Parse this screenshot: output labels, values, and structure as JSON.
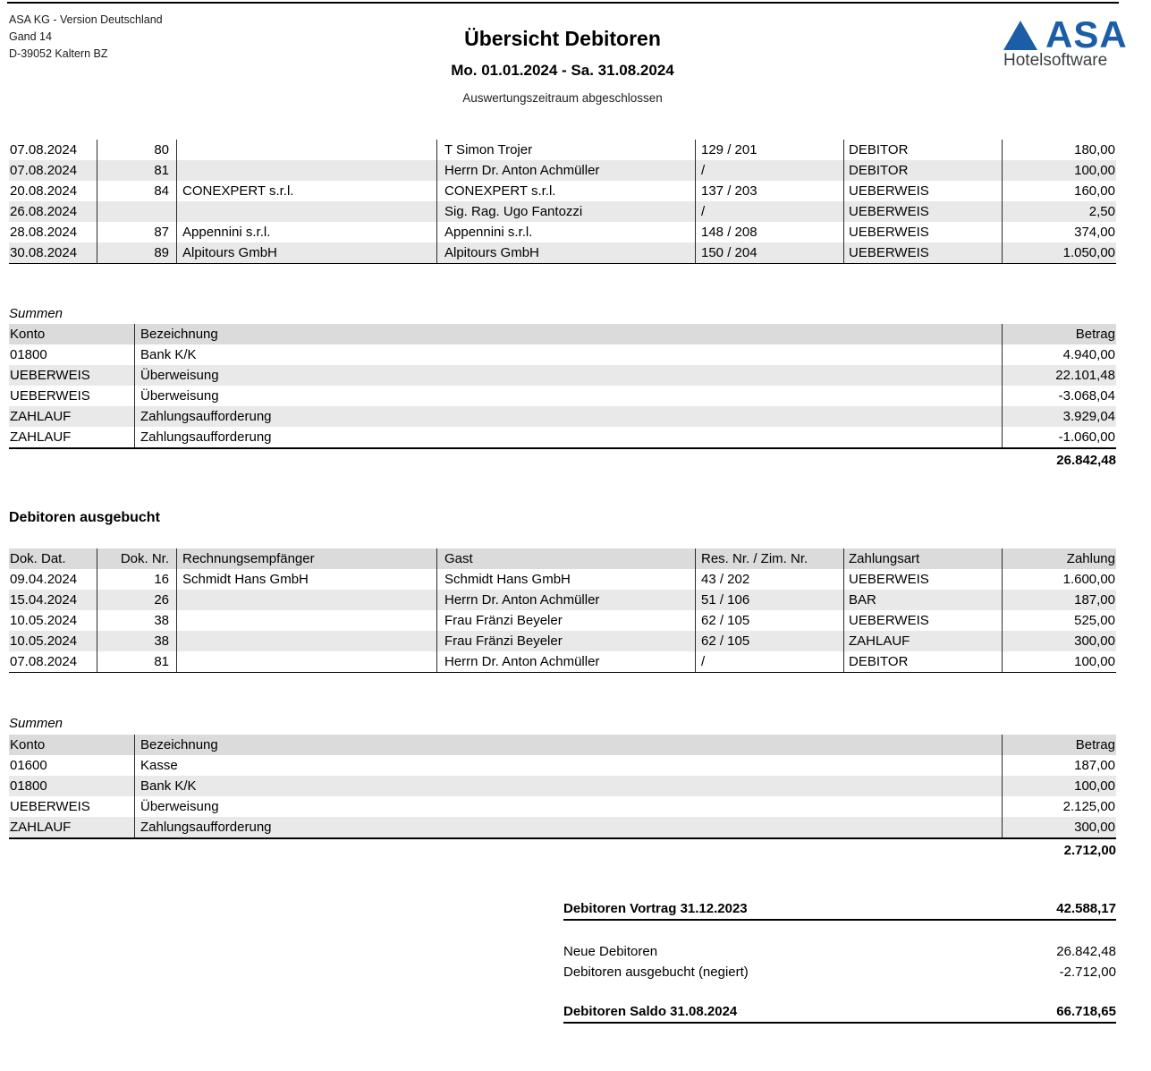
{
  "header": {
    "address_lines": [
      "ASA KG - Version Deutschland",
      "Gand 14",
      "D-39052 Kaltern BZ"
    ],
    "title": "Übersicht Debitoren",
    "date_range": "Mo. 01.01.2024 - Sa. 31.08.2024",
    "status": "Auswertungszeitraum abgeschlossen",
    "logo": {
      "icon": "triangle-icon",
      "brand": "ASA",
      "subtitle": "Hotelsoftware",
      "brand_color": "#1b5ea6",
      "subtitle_color": "#3b3f42"
    }
  },
  "open_debtors_table": {
    "rows": [
      [
        "07.08.2024",
        "80",
        "",
        "T Simon Trojer",
        "129 / 201",
        "DEBITOR",
        "180,00"
      ],
      [
        "07.08.2024",
        "81",
        "",
        "Herrn Dr. Anton Achmüller",
        "/",
        "DEBITOR",
        "100,00"
      ],
      [
        "20.08.2024",
        "84",
        "CONEXPERT s.r.l.",
        "CONEXPERT s.r.l.",
        "137 / 203",
        "UEBERWEIS",
        "160,00"
      ],
      [
        "26.08.2024",
        "",
        "",
        "Sig. Rag. Ugo Fantozzi",
        "/",
        "UEBERWEIS",
        "2,50"
      ],
      [
        "28.08.2024",
        "87",
        "Appennini s.r.l.",
        "Appennini s.r.l.",
        "148 / 208",
        "UEBERWEIS",
        "374,00"
      ],
      [
        "30.08.2024",
        "89",
        "Alpitours GmbH",
        "Alpitours GmbH",
        "150 / 204",
        "UEBERWEIS",
        "1.050,00"
      ]
    ]
  },
  "summen1": {
    "title": "Summen",
    "headers": [
      "Konto",
      "Bezeichnung",
      "Betrag"
    ],
    "rows": [
      [
        "01800",
        "Bank K/K",
        "4.940,00"
      ],
      [
        "UEBERWEIS",
        "Überweisung",
        "22.101,48"
      ],
      [
        "UEBERWEIS",
        "Überweisung",
        "-3.068,04"
      ],
      [
        "ZAHLAUF",
        "Zahlungsaufforderung",
        "3.929,04"
      ],
      [
        "ZAHLAUF",
        "Zahlungsaufforderung",
        "-1.060,00"
      ]
    ],
    "total": "26.842,48"
  },
  "written_off": {
    "heading": "Debitoren ausgebucht",
    "headers": [
      "Dok. Dat.",
      "Dok. Nr.",
      "Rechnungsempfänger",
      "Gast",
      "Res. Nr. / Zim. Nr.",
      "Zahlungsart",
      "Zahlung"
    ],
    "rows": [
      [
        "09.04.2024",
        "16",
        "Schmidt Hans GmbH",
        "Schmidt Hans GmbH",
        "43 / 202",
        "UEBERWEIS",
        "1.600,00"
      ],
      [
        "15.04.2024",
        "26",
        "",
        "Herrn Dr. Anton Achmüller",
        "51 / 106",
        "BAR",
        "187,00"
      ],
      [
        "10.05.2024",
        "38",
        "",
        "Frau Fränzi Beyeler",
        "62 / 105",
        "UEBERWEIS",
        "525,00"
      ],
      [
        "10.05.2024",
        "38",
        "",
        "Frau Fränzi Beyeler",
        "62 / 105",
        "ZAHLAUF",
        "300,00"
      ],
      [
        "07.08.2024",
        "81",
        "",
        "Herrn Dr. Anton Achmüller",
        "/",
        "DEBITOR",
        "100,00"
      ]
    ]
  },
  "summen2": {
    "title": "Summen",
    "headers": [
      "Konto",
      "Bezeichnung",
      "Betrag"
    ],
    "rows": [
      [
        "01600",
        "Kasse",
        "187,00"
      ],
      [
        "01800",
        "Bank K/K",
        "100,00"
      ],
      [
        "UEBERWEIS",
        "Überweisung",
        "2.125,00"
      ],
      [
        "ZAHLAUF",
        "Zahlungsaufforderung",
        "300,00"
      ]
    ],
    "total": "2.712,00"
  },
  "summary": {
    "vortrag_label": "Debitoren Vortrag 31.12.2023",
    "vortrag_value": "42.588,17",
    "neue_label": "Neue Debitoren",
    "neue_value": "26.842,48",
    "ausgebucht_label": "Debitoren ausgebucht (negiert)",
    "ausgebucht_value": "-2.712,00",
    "saldo_label": "Debitoren Saldo 31.08.2024",
    "saldo_value": "66.718,65"
  }
}
